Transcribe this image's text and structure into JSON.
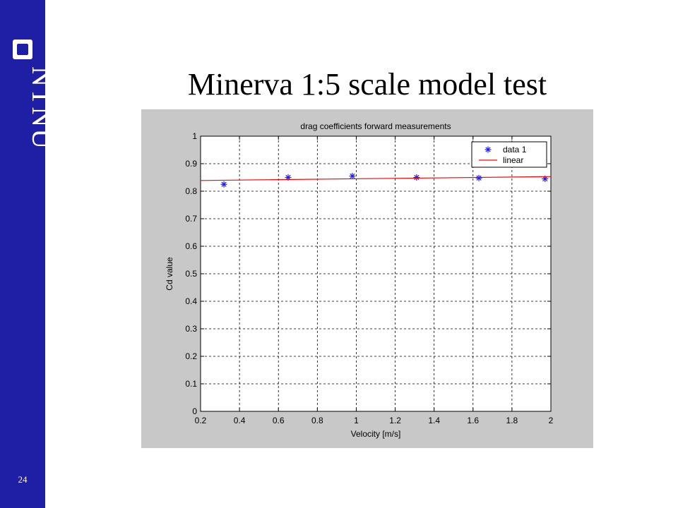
{
  "slide": {
    "title": "Minerva 1:5 scale model test",
    "page_number": "24",
    "logo_text": "NTNU"
  },
  "colors": {
    "sidebar": "#1f1fa6",
    "figure_background": "#c8c8c8",
    "marker": "#1a1aff",
    "fit_line": "#ff0000"
  },
  "chart_data": {
    "type": "scatter",
    "title": "drag coefficients forward measurements",
    "xlabel": "Velocity [m/s]",
    "ylabel": "Cd value",
    "xlim": [
      0.2,
      2
    ],
    "ylim": [
      0,
      1
    ],
    "xticks": [
      "0.2",
      "0.4",
      "0.6",
      "0.8",
      "1",
      "1.2",
      "1.4",
      "1.6",
      "1.8",
      "2"
    ],
    "yticks": [
      "0",
      "0.1",
      "0.2",
      "0.3",
      "0.4",
      "0.5",
      "0.6",
      "0.7",
      "0.8",
      "0.9",
      "1"
    ],
    "grid": true,
    "legend_position": "top-right",
    "series": [
      {
        "name": "data 1",
        "marker": "asterisk",
        "x": [
          0.32,
          0.65,
          0.98,
          1.31,
          1.63,
          1.97
        ],
        "y": [
          0.825,
          0.85,
          0.855,
          0.85,
          0.848,
          0.845
        ]
      },
      {
        "name": "linear",
        "line": true,
        "x": [
          0.2,
          2.0
        ],
        "y": [
          0.839,
          0.853
        ]
      }
    ]
  }
}
